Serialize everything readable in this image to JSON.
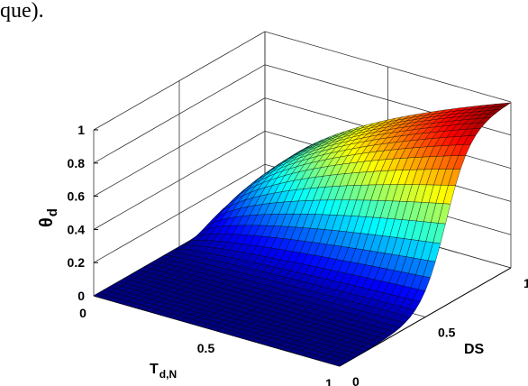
{
  "caption_fragment": "que).",
  "chart_data": {
    "type": "surface",
    "title": "",
    "xlabel_main": "T",
    "xlabel_sub": "d,N",
    "ylabel": "DS",
    "zlabel_main": "θ",
    "zlabel_sub": "d",
    "x_ticks": [
      "0",
      "0.5",
      "1"
    ],
    "y_ticks": [
      "0",
      "0.5",
      "1"
    ],
    "z_ticks": [
      "0",
      "0.2",
      "0.4",
      "0.6",
      "0.8",
      "1"
    ],
    "xlim": [
      0,
      1
    ],
    "ylim": [
      0,
      1
    ],
    "zlim": [
      0,
      1
    ],
    "grid": true,
    "colormap": "jet",
    "surface_samples": {
      "DS": [
        0,
        0.25,
        0.5,
        0.75,
        1
      ],
      "T_dN_0": [
        0,
        0,
        0,
        0,
        0
      ],
      "T_dN_0.5": [
        0,
        0.005,
        0.1,
        0.65,
        0.97
      ],
      "T_dN_1": [
        0,
        0.01,
        0.35,
        0.9,
        1
      ]
    }
  }
}
